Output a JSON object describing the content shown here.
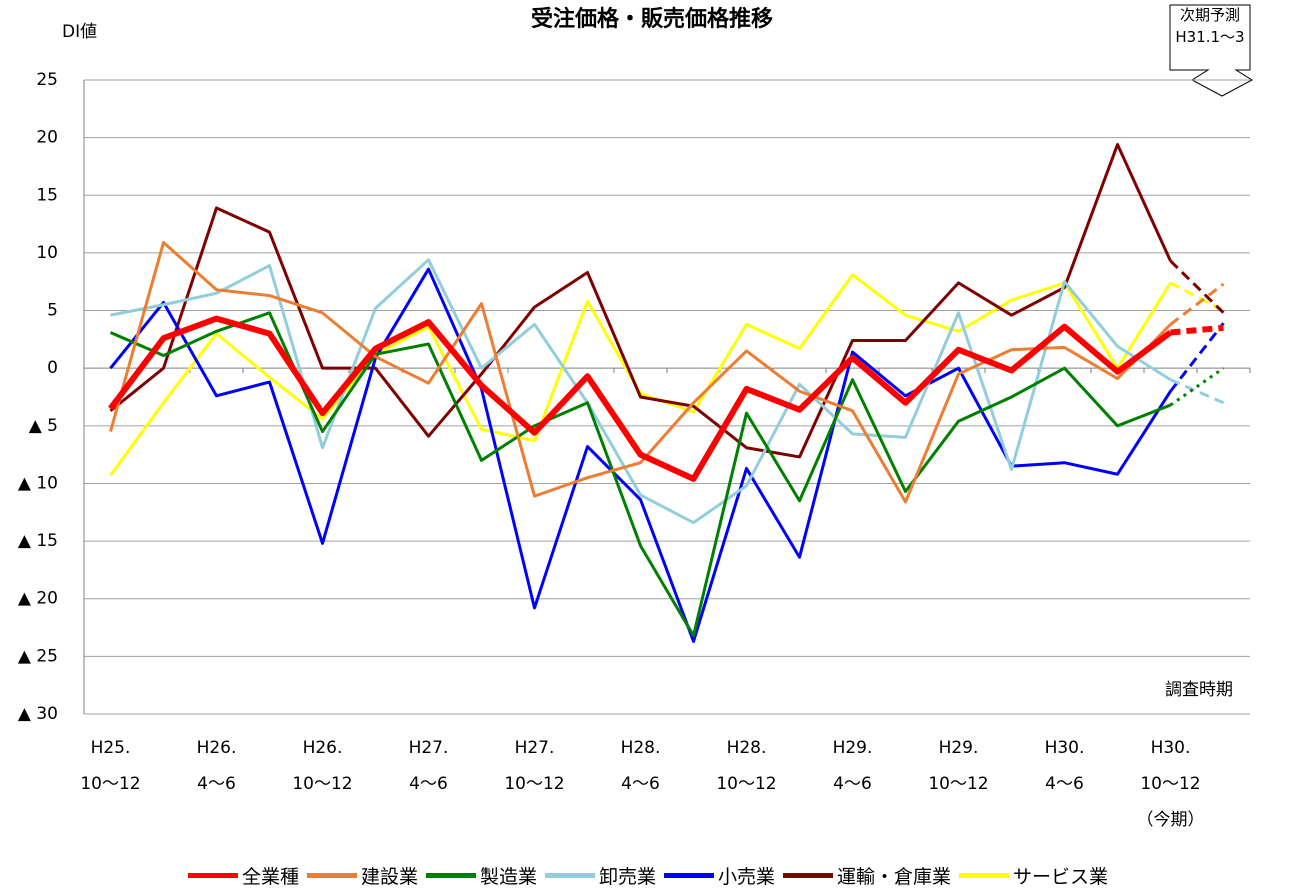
{
  "chart_data": {
    "type": "line",
    "title": "受注価格・販売価格推移",
    "y_label": "DI値",
    "x_label": "調査時期",
    "forecast_label": "次期予測\nH31.1〜3",
    "dashed_last": true,
    "categories": [
      "H25.\n10〜12",
      null,
      "H26.\n4〜6",
      null,
      "H26.\n10〜12",
      null,
      "H27.\n4〜6",
      null,
      "H27.\n10〜12",
      null,
      "H28.\n4〜6",
      null,
      "H28.\n10〜12",
      null,
      "H29.\n4〜6",
      null,
      "H29.\n10〜12",
      null,
      "H30.\n4〜6",
      null,
      "H30.\n10〜12\n（今期）",
      null
    ],
    "ylim": [
      -30,
      25
    ],
    "yticks": [
      {
        "value": -30,
        "label": "▲ 30"
      },
      {
        "value": -25,
        "label": "▲ 25"
      },
      {
        "value": -20,
        "label": "▲ 20"
      },
      {
        "value": -15,
        "label": "▲ 15"
      },
      {
        "value": -10,
        "label": "▲ 10"
      },
      {
        "value": -5,
        "label": "▲ 5"
      },
      0,
      5,
      10,
      15,
      20,
      25
    ],
    "grid": true,
    "series": [
      {
        "name": "全業種",
        "color": "#ff0000",
        "values": [
          -3.5,
          2.6,
          4.3,
          3.0,
          -3.9,
          1.7,
          4.0,
          -1.5,
          -5.6,
          -0.7,
          -7.5,
          -9.6,
          -1.8,
          -3.6,
          0.9,
          -3.0,
          1.6,
          -0.2,
          3.6,
          -0.3,
          3.1,
          3.5
        ]
      },
      {
        "name": "建設業",
        "color": "#ed7d31",
        "values": [
          -5.5,
          10.9,
          6.8,
          6.3,
          4.8,
          1.0,
          -1.3,
          5.6,
          -11.1,
          -9.5,
          -8.2,
          -3.0,
          1.5,
          -2.0,
          -3.7,
          -11.6,
          -0.5,
          1.6,
          1.8,
          -0.9,
          3.8,
          7.3
        ]
      },
      {
        "name": "製造業",
        "color": "#008000",
        "values": [
          3.1,
          1.1,
          3.2,
          4.8,
          -5.5,
          1.2,
          2.1,
          -8.0,
          -5.0,
          -3.0,
          -15.4,
          -23.2,
          -3.9,
          -11.5,
          -1.0,
          -10.7,
          -4.6,
          -2.5,
          0.0,
          -5.0,
          -3.2,
          0.0
        ]
      },
      {
        "name": "卸売業",
        "color": "#92cddc",
        "values": [
          4.6,
          5.5,
          6.5,
          8.9,
          -6.9,
          5.2,
          9.4,
          0.0,
          3.8,
          -3.0,
          -11.0,
          -13.4,
          -10.2,
          -1.4,
          -5.7,
          -6.0,
          4.8,
          -8.8,
          7.5,
          1.9,
          -1.0,
          -3.0
        ]
      },
      {
        "name": "小売業",
        "color": "#0000ff",
        "values": [
          0.0,
          5.7,
          -2.4,
          -1.2,
          -15.2,
          0.9,
          8.6,
          -1.8,
          -20.8,
          -6.8,
          -11.4,
          -23.7,
          -8.7,
          -16.4,
          1.4,
          -2.4,
          0.0,
          -8.5,
          -8.2,
          -9.2,
          -2.0,
          3.9
        ]
      },
      {
        "name": "運輸・倉庫業",
        "color": "#7f0000",
        "values": [
          -3.7,
          0.0,
          13.9,
          11.8,
          0.0,
          0.0,
          -5.9,
          -0.5,
          5.3,
          8.3,
          -2.5,
          -3.3,
          -6.9,
          -7.7,
          2.4,
          2.4,
          7.4,
          4.6,
          7.0,
          19.4,
          9.3,
          4.8
        ]
      },
      {
        "name": "サービス業",
        "color": "#ffff00",
        "values": [
          -9.3,
          -3.0,
          3.0,
          -0.8,
          -4.4,
          1.2,
          3.6,
          -5.3,
          -6.3,
          5.8,
          -2.2,
          -3.8,
          3.8,
          1.7,
          8.1,
          4.6,
          3.2,
          5.9,
          7.4,
          0.0,
          7.4,
          5.0
        ]
      }
    ]
  }
}
